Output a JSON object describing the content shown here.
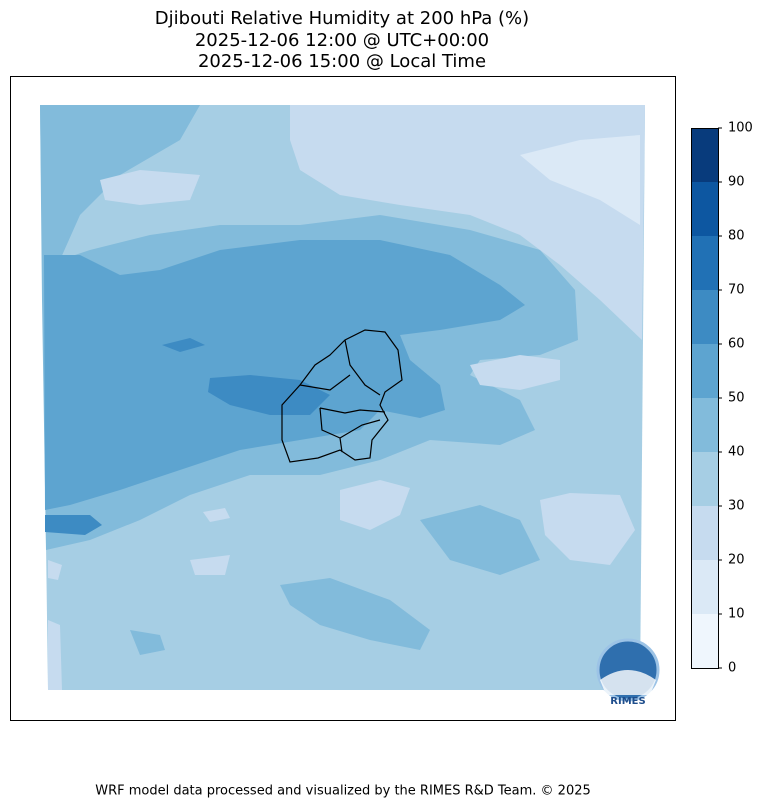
{
  "title": [
    "Djibouti Relative Humidity at 200 hPa (%)",
    "2025-12-06 12:00 @ UTC+00:00",
    "2025-12-06 15:00 @ Local Time"
  ],
  "colorbar": {
    "lim": [
      0,
      100
    ],
    "ticks": [
      0,
      10,
      20,
      30,
      40,
      50,
      60,
      70,
      80,
      90,
      100
    ],
    "colors": [
      "#eff6fd",
      "#dbe9f6",
      "#c6dbef",
      "#a6cee4",
      "#82bbdb",
      "#5da4d0",
      "#3d8bc3",
      "#2171b5",
      "#0d57a1",
      "#083b7c"
    ]
  },
  "logo": "RIMES",
  "footer": "WRF model data processed and visualized by the RIMES R&D Team. © 2025"
}
